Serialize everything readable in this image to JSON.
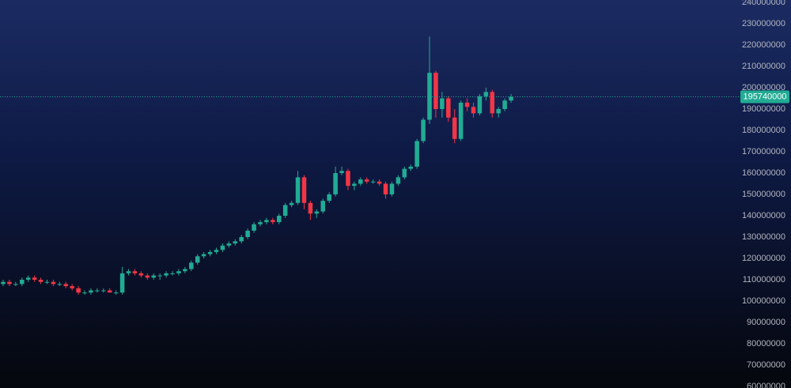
{
  "chart_data": {
    "type": "candlestick",
    "up_color": "#22ab94",
    "down_color": "#f23645",
    "ylim": [
      59260000,
      241110000
    ],
    "yticks": [
      60000000,
      70000000,
      80000000,
      90000000,
      100000000,
      110000000,
      120000000,
      130000000,
      140000000,
      150000000,
      160000000,
      170000000,
      180000000,
      190000000,
      200000000,
      210000000,
      220000000,
      230000000,
      240000000
    ],
    "open": [
      108000000,
      109000000,
      108000000,
      108000000,
      110000000,
      111000000,
      110000000,
      109000000,
      109000000,
      108000000,
      108000000,
      107000000,
      106000000,
      104000000,
      104000000,
      105000000,
      105000000,
      105000000,
      104000000,
      104000000,
      113000000,
      114000000,
      113000000,
      112000000,
      111000000,
      112000000,
      112000000,
      113000000,
      113000000,
      114000000,
      115000000,
      118000000,
      121000000,
      122000000,
      123000000,
      124000000,
      126000000,
      127000000,
      128000000,
      130000000,
      133000000,
      136000000,
      137000000,
      138000000,
      137000000,
      140000000,
      145000000,
      146000000,
      158000000,
      146000000,
      141000000,
      142000000,
      147000000,
      150000000,
      160000000,
      161000000,
      154000000,
      155000000,
      157000000,
      156000000,
      156000000,
      155000000,
      150000000,
      155000000,
      158000000,
      162000000,
      163000000,
      175000000,
      185000000,
      207000000,
      190000000,
      195000000,
      186000000,
      176000000,
      193000000,
      191000000,
      188000000,
      196000000,
      198000000,
      188000000,
      190000000,
      194000000
    ],
    "high": [
      110000000,
      110000000,
      109000000,
      111000000,
      112000000,
      112000000,
      111000000,
      110000000,
      110000000,
      109000000,
      109000000,
      108000000,
      107000000,
      105000000,
      106000000,
      106000000,
      106000000,
      106000000,
      105000000,
      116000000,
      115000000,
      115000000,
      114000000,
      113000000,
      113000000,
      113000000,
      114000000,
      114000000,
      115000000,
      116000000,
      119000000,
      122000000,
      123000000,
      124000000,
      125000000,
      127000000,
      128000000,
      129000000,
      131000000,
      134000000,
      137000000,
      138000000,
      139000000,
      139000000,
      141000000,
      146000000,
      147000000,
      161000000,
      159000000,
      147000000,
      143000000,
      148000000,
      151000000,
      163000000,
      163000000,
      162000000,
      156000000,
      158000000,
      158000000,
      157000000,
      157000000,
      156000000,
      156000000,
      159000000,
      163000000,
      164000000,
      176000000,
      186000000,
      224000000,
      208000000,
      198000000,
      196000000,
      190000000,
      194000000,
      195000000,
      193000000,
      197000000,
      200000000,
      199000000,
      191000000,
      195000000,
      197000000
    ],
    "low": [
      107000000,
      107000000,
      107000000,
      107000000,
      109000000,
      109000000,
      108000000,
      108000000,
      107000000,
      107000000,
      106000000,
      105000000,
      103000000,
      103000000,
      103000000,
      104000000,
      104000000,
      104000000,
      103000000,
      103000000,
      112000000,
      112000000,
      111000000,
      110000000,
      110000000,
      110000000,
      111000000,
      112000000,
      112000000,
      113000000,
      114000000,
      117000000,
      120000000,
      121000000,
      122000000,
      123000000,
      125000000,
      126000000,
      127000000,
      129000000,
      132000000,
      135000000,
      136000000,
      136000000,
      136000000,
      139000000,
      144000000,
      145000000,
      143000000,
      138000000,
      139000000,
      141000000,
      146000000,
      149000000,
      159000000,
      152000000,
      152000000,
      154000000,
      155000000,
      155000000,
      154000000,
      148000000,
      149000000,
      154000000,
      157000000,
      161000000,
      162000000,
      174000000,
      183000000,
      186000000,
      186000000,
      184000000,
      174000000,
      175000000,
      189000000,
      186000000,
      187000000,
      194000000,
      186000000,
      186000000,
      189000000,
      193000000
    ],
    "close": [
      109000000,
      108000000,
      108000000,
      110000000,
      111000000,
      110000000,
      109000000,
      109000000,
      108000000,
      108000000,
      107000000,
      106000000,
      104000000,
      104000000,
      105000000,
      105000000,
      105000000,
      104000000,
      104000000,
      113000000,
      114000000,
      113000000,
      112000000,
      111000000,
      112000000,
      112000000,
      113000000,
      113000000,
      114000000,
      115000000,
      118000000,
      121000000,
      122000000,
      123000000,
      124000000,
      126000000,
      127000000,
      128000000,
      130000000,
      133000000,
      136000000,
      137000000,
      138000000,
      137000000,
      140000000,
      145000000,
      146000000,
      158000000,
      146000000,
      141000000,
      142000000,
      147000000,
      150000000,
      160000000,
      161000000,
      154000000,
      155000000,
      157000000,
      156000000,
      156000000,
      155000000,
      150000000,
      155000000,
      158000000,
      162000000,
      163000000,
      175000000,
      185000000,
      207000000,
      190000000,
      195000000,
      186000000,
      176000000,
      193000000,
      191000000,
      188000000,
      196000000,
      198000000,
      188000000,
      190000000,
      194000000,
      195740000
    ]
  }
}
